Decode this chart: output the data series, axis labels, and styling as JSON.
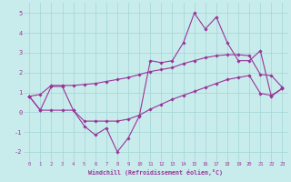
{
  "xlabel": "Windchill (Refroidissement éolien,°C)",
  "bg_color": "#c8ecec",
  "grid_color": "#a8d8d8",
  "line_color": "#993399",
  "ylim": [
    -2.5,
    5.5
  ],
  "xlim": [
    -0.5,
    23.5
  ],
  "yticks": [
    -2,
    -1,
    0,
    1,
    2,
    3,
    4,
    5
  ],
  "xticks": [
    0,
    1,
    2,
    3,
    4,
    5,
    6,
    7,
    8,
    9,
    10,
    11,
    12,
    13,
    14,
    15,
    16,
    17,
    18,
    19,
    20,
    21,
    22,
    23
  ],
  "upper": [
    0.8,
    0.9,
    1.35,
    1.35,
    1.35,
    1.4,
    1.45,
    1.55,
    1.65,
    1.75,
    1.9,
    2.05,
    2.15,
    2.25,
    2.45,
    2.6,
    2.75,
    2.85,
    2.9,
    2.9,
    2.85,
    1.9,
    1.85,
    1.25
  ],
  "lower": [
    0.8,
    0.1,
    0.1,
    0.1,
    0.1,
    -0.45,
    -0.45,
    -0.45,
    -0.45,
    -0.35,
    -0.15,
    0.15,
    0.4,
    0.65,
    0.85,
    1.05,
    1.25,
    1.45,
    1.65,
    1.75,
    1.85,
    0.95,
    0.85,
    1.2
  ],
  "jagged": [
    0.8,
    0.1,
    1.3,
    1.3,
    0.1,
    -0.7,
    -1.15,
    -0.8,
    -2.0,
    -1.3,
    -0.2,
    2.6,
    2.5,
    2.6,
    3.5,
    5.0,
    4.2,
    4.8,
    3.5,
    2.6,
    2.6,
    3.1,
    0.8,
    1.2
  ]
}
